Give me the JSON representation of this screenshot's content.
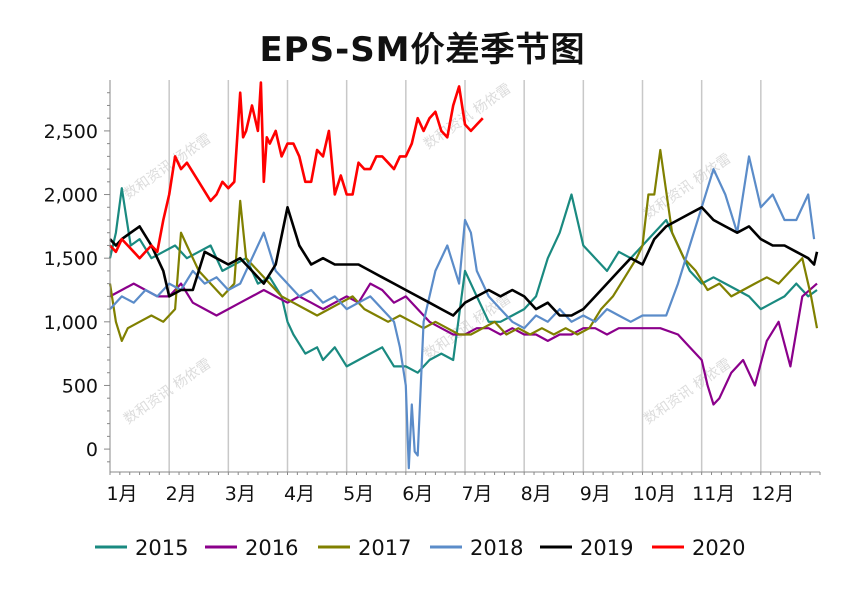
{
  "chart_data": {
    "type": "line",
    "title": "EPS-SM价差季节图",
    "xlabel": "",
    "ylabel": "",
    "ylim": [
      -180,
      2900
    ],
    "yticks": [
      0,
      500,
      1000,
      1500,
      2000,
      2500
    ],
    "ytick_labels": [
      "0",
      "500",
      "1,000",
      "1,500",
      "2,000",
      "2,500"
    ],
    "x_unit": "month",
    "xlim": [
      1,
      13
    ],
    "xticks": [
      1,
      2,
      3,
      4,
      5,
      6,
      7,
      8,
      9,
      10,
      11,
      12
    ],
    "xtick_labels": [
      "1月",
      "2月",
      "3月",
      "4月",
      "5月",
      "6月",
      "7月",
      "8月",
      "9月",
      "10月",
      "11月",
      "12月"
    ],
    "grid": "vertical",
    "legend": "bottom",
    "watermark": "数和资讯 杨依雷",
    "series": [
      {
        "name": "2015",
        "color": "#1a8a80",
        "x": [
          1.0,
          1.1,
          1.2,
          1.35,
          1.5,
          1.7,
          1.9,
          2.1,
          2.3,
          2.5,
          2.7,
          2.9,
          3.1,
          3.3,
          3.5,
          3.7,
          3.9,
          4.0,
          4.1,
          4.3,
          4.5,
          4.6,
          4.8,
          5.0,
          5.2,
          5.4,
          5.6,
          5.8,
          6.0,
          6.2,
          6.4,
          6.6,
          6.8,
          7.0,
          7.2,
          7.4,
          7.6,
          7.8,
          8.0,
          8.2,
          8.4,
          8.6,
          8.8,
          9.0,
          9.2,
          9.4,
          9.6,
          9.8,
          10.0,
          10.2,
          10.4,
          10.6,
          10.8,
          11.0,
          11.2,
          11.4,
          11.6,
          11.8,
          12.0,
          12.2,
          12.4,
          12.6,
          12.8,
          12.95
        ],
        "values": [
          1500,
          1700,
          2050,
          1600,
          1650,
          1500,
          1550,
          1600,
          1500,
          1550,
          1600,
          1400,
          1450,
          1500,
          1300,
          1350,
          1200,
          1000,
          900,
          750,
          800,
          700,
          800,
          650,
          700,
          750,
          800,
          650,
          650,
          600,
          700,
          750,
          700,
          1400,
          1200,
          1000,
          1000,
          1050,
          1100,
          1200,
          1500,
          1700,
          2000,
          1600,
          1500,
          1400,
          1550,
          1500,
          1600,
          1700,
          1800,
          1600,
          1400,
          1300,
          1350,
          1300,
          1250,
          1200,
          1100,
          1150,
          1200,
          1300,
          1200,
          1250
        ]
      },
      {
        "name": "2016",
        "color": "#8b008b",
        "x": [
          1.0,
          1.2,
          1.4,
          1.6,
          1.8,
          2.0,
          2.2,
          2.4,
          2.6,
          2.8,
          3.0,
          3.2,
          3.4,
          3.6,
          3.8,
          4.0,
          4.2,
          4.4,
          4.6,
          4.8,
          5.0,
          5.2,
          5.4,
          5.6,
          5.8,
          6.0,
          6.2,
          6.4,
          6.6,
          6.8,
          7.0,
          7.2,
          7.4,
          7.6,
          7.8,
          8.0,
          8.2,
          8.4,
          8.6,
          8.8,
          9.0,
          9.2,
          9.4,
          9.6,
          9.8,
          10.0,
          10.3,
          10.6,
          10.8,
          11.0,
          11.1,
          11.2,
          11.3,
          11.5,
          11.7,
          11.9,
          12.1,
          12.3,
          12.5,
          12.7,
          12.95
        ],
        "values": [
          1200,
          1250,
          1300,
          1250,
          1200,
          1200,
          1300,
          1150,
          1100,
          1050,
          1100,
          1150,
          1200,
          1250,
          1200,
          1150,
          1200,
          1150,
          1100,
          1150,
          1200,
          1150,
          1300,
          1250,
          1150,
          1200,
          1100,
          1000,
          950,
          900,
          900,
          950,
          950,
          900,
          950,
          900,
          900,
          850,
          900,
          900,
          950,
          950,
          900,
          950,
          950,
          950,
          950,
          900,
          800,
          700,
          500,
          350,
          400,
          600,
          700,
          500,
          850,
          1000,
          650,
          1200,
          1300
        ]
      },
      {
        "name": "2017",
        "color": "#808000",
        "x": [
          1.0,
          1.1,
          1.2,
          1.3,
          1.5,
          1.7,
          1.9,
          2.1,
          2.2,
          2.3,
          2.5,
          2.7,
          2.9,
          3.1,
          3.2,
          3.3,
          3.5,
          3.7,
          3.9,
          4.1,
          4.3,
          4.5,
          4.7,
          4.9,
          5.1,
          5.3,
          5.5,
          5.7,
          5.9,
          6.1,
          6.3,
          6.5,
          6.7,
          6.9,
          7.1,
          7.3,
          7.5,
          7.7,
          7.9,
          8.1,
          8.3,
          8.5,
          8.7,
          8.9,
          9.1,
          9.3,
          9.5,
          9.7,
          9.9,
          10.0,
          10.1,
          10.2,
          10.3,
          10.5,
          10.7,
          10.9,
          11.1,
          11.3,
          11.5,
          11.7,
          11.9,
          12.1,
          12.3,
          12.5,
          12.7,
          12.85,
          12.95
        ],
        "values": [
          1300,
          1000,
          850,
          950,
          1000,
          1050,
          1000,
          1100,
          1700,
          1600,
          1400,
          1300,
          1200,
          1300,
          1950,
          1500,
          1400,
          1300,
          1200,
          1150,
          1100,
          1050,
          1100,
          1150,
          1200,
          1100,
          1050,
          1000,
          1050,
          1000,
          950,
          1000,
          950,
          900,
          900,
          950,
          1000,
          900,
          950,
          900,
          950,
          900,
          950,
          900,
          950,
          1100,
          1200,
          1350,
          1500,
          1600,
          2000,
          2000,
          2350,
          1700,
          1500,
          1400,
          1250,
          1300,
          1200,
          1250,
          1300,
          1350,
          1300,
          1400,
          1500,
          1200,
          950
        ]
      },
      {
        "name": "2018",
        "color": "#5b8cc9",
        "x": [
          1.0,
          1.2,
          1.4,
          1.6,
          1.8,
          2.0,
          2.2,
          2.4,
          2.6,
          2.8,
          3.0,
          3.2,
          3.4,
          3.6,
          3.8,
          4.0,
          4.2,
          4.4,
          4.6,
          4.8,
          5.0,
          5.2,
          5.4,
          5.6,
          5.8,
          5.9,
          6.0,
          6.05,
          6.1,
          6.15,
          6.2,
          6.3,
          6.5,
          6.7,
          6.9,
          7.0,
          7.1,
          7.2,
          7.4,
          7.6,
          7.8,
          8.0,
          8.2,
          8.4,
          8.6,
          8.8,
          9.0,
          9.2,
          9.4,
          9.6,
          9.8,
          10.0,
          10.2,
          10.4,
          10.6,
          10.8,
          11.0,
          11.2,
          11.4,
          11.6,
          11.8,
          12.0,
          12.2,
          12.4,
          12.6,
          12.8,
          12.9
        ],
        "values": [
          1100,
          1200,
          1150,
          1250,
          1200,
          1300,
          1250,
          1400,
          1300,
          1350,
          1250,
          1300,
          1500,
          1700,
          1400,
          1300,
          1200,
          1250,
          1150,
          1200,
          1100,
          1150,
          1200,
          1100,
          1000,
          800,
          500,
          -150,
          350,
          -20,
          -50,
          1000,
          1400,
          1600,
          1300,
          1800,
          1700,
          1400,
          1200,
          1100,
          1000,
          950,
          1050,
          1000,
          1100,
          1000,
          1050,
          1000,
          1100,
          1050,
          1000,
          1050,
          1050,
          1050,
          1300,
          1600,
          1900,
          2200,
          2000,
          1700,
          2300,
          1900,
          2000,
          1800,
          1800,
          2000,
          1650
        ]
      },
      {
        "name": "2019",
        "color": "#000000",
        "x": [
          1.0,
          1.1,
          1.2,
          1.35,
          1.5,
          1.7,
          1.9,
          2.0,
          2.2,
          2.4,
          2.6,
          2.8,
          3.0,
          3.2,
          3.4,
          3.6,
          3.8,
          4.0,
          4.2,
          4.4,
          4.6,
          4.8,
          5.0,
          5.2,
          5.4,
          5.6,
          5.8,
          6.0,
          6.2,
          6.4,
          6.6,
          6.8,
          7.0,
          7.2,
          7.4,
          7.6,
          7.8,
          8.0,
          8.2,
          8.4,
          8.6,
          8.8,
          9.0,
          9.2,
          9.4,
          9.6,
          9.8,
          10.0,
          10.2,
          10.4,
          10.6,
          10.8,
          11.0,
          11.2,
          11.4,
          11.6,
          11.8,
          12.0,
          12.2,
          12.4,
          12.6,
          12.8,
          12.9,
          12.95
        ],
        "values": [
          1650,
          1600,
          1650,
          1700,
          1750,
          1600,
          1400,
          1200,
          1250,
          1250,
          1550,
          1500,
          1450,
          1500,
          1400,
          1300,
          1450,
          1900,
          1600,
          1450,
          1500,
          1450,
          1450,
          1450,
          1400,
          1350,
          1300,
          1250,
          1200,
          1150,
          1100,
          1050,
          1150,
          1200,
          1250,
          1200,
          1250,
          1200,
          1100,
          1150,
          1050,
          1050,
          1100,
          1200,
          1300,
          1400,
          1500,
          1450,
          1650,
          1750,
          1800,
          1850,
          1900,
          1800,
          1750,
          1700,
          1750,
          1650,
          1600,
          1600,
          1550,
          1500,
          1450,
          1550
        ]
      },
      {
        "name": "2020",
        "color": "#ff0000",
        "x": [
          1.0,
          1.1,
          1.2,
          1.3,
          1.4,
          1.5,
          1.6,
          1.7,
          1.8,
          1.9,
          2.0,
          2.1,
          2.15,
          2.2,
          2.3,
          2.5,
          2.7,
          2.8,
          2.9,
          3.0,
          3.1,
          3.2,
          3.25,
          3.3,
          3.4,
          3.5,
          3.55,
          3.6,
          3.65,
          3.7,
          3.8,
          3.9,
          4.0,
          4.1,
          4.2,
          4.3,
          4.4,
          4.5,
          4.6,
          4.7,
          4.8,
          4.9,
          5.0,
          5.1,
          5.2,
          5.3,
          5.4,
          5.5,
          5.6,
          5.7,
          5.8,
          5.9,
          6.0,
          6.1,
          6.2,
          6.3,
          6.4,
          6.5,
          6.6,
          6.7,
          6.8,
          6.9,
          7.0,
          7.1,
          7.2,
          7.3
        ],
        "values": [
          1600,
          1550,
          1650,
          1600,
          1550,
          1500,
          1550,
          1600,
          1550,
          1800,
          2000,
          2300,
          2250,
          2200,
          2250,
          2100,
          1950,
          2000,
          2100,
          2050,
          2100,
          2800,
          2450,
          2500,
          2700,
          2500,
          2880,
          2100,
          2450,
          2400,
          2500,
          2300,
          2400,
          2400,
          2300,
          2100,
          2100,
          2350,
          2300,
          2500,
          2000,
          2150,
          2000,
          2000,
          2250,
          2200,
          2200,
          2300,
          2300,
          2250,
          2200,
          2300,
          2300,
          2400,
          2600,
          2500,
          2600,
          2650,
          2500,
          2450,
          2700,
          2850,
          2550,
          2500,
          2550,
          2600
        ]
      }
    ]
  }
}
